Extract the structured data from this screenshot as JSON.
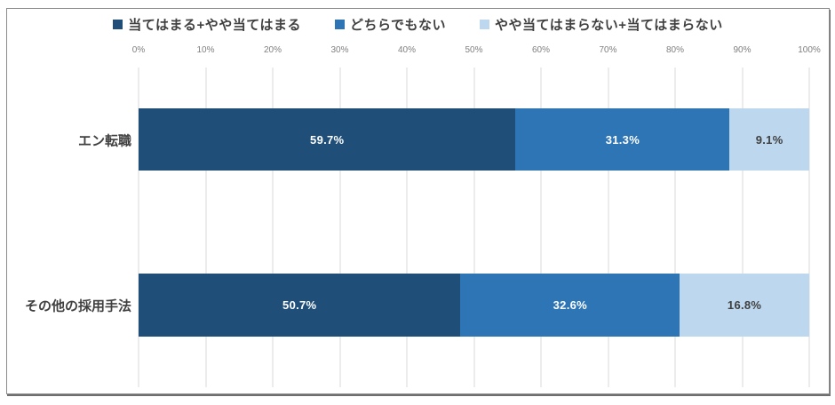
{
  "chart_data": {
    "type": "bar",
    "orientation": "horizontal",
    "stacked": true,
    "title": "",
    "categories": [
      "エン転職",
      "その他の採用手法"
    ],
    "series": [
      {
        "name": "当てはまる+やや当てはまる",
        "color": "#1F4E79",
        "label_color": "#FFFFFF",
        "values": [
          59.7,
          50.7
        ],
        "labels": [
          "59.7%",
          "50.7%"
        ]
      },
      {
        "name": "どちらでもない",
        "color": "#2E75B6",
        "label_color": "#FFFFFF",
        "values": [
          31.3,
          32.6
        ],
        "labels": [
          "31.3%",
          "32.6%"
        ]
      },
      {
        "name": "やや当てはまらない+当てはまらない",
        "color": "#BDD7EE",
        "label_color": "#404040",
        "values": [
          9.1,
          16.8
        ],
        "labels": [
          "9.1%",
          "16.8%"
        ]
      }
    ],
    "x_axis": {
      "min": 0,
      "max": 100,
      "tick_step": 10,
      "tick_labels": [
        "0%",
        "10%",
        "20%",
        "30%",
        "40%",
        "50%",
        "60%",
        "70%",
        "80%",
        "90%",
        "100%"
      ]
    },
    "grid": true,
    "grid_color": "#D9D9D9",
    "legend_position": "top"
  }
}
